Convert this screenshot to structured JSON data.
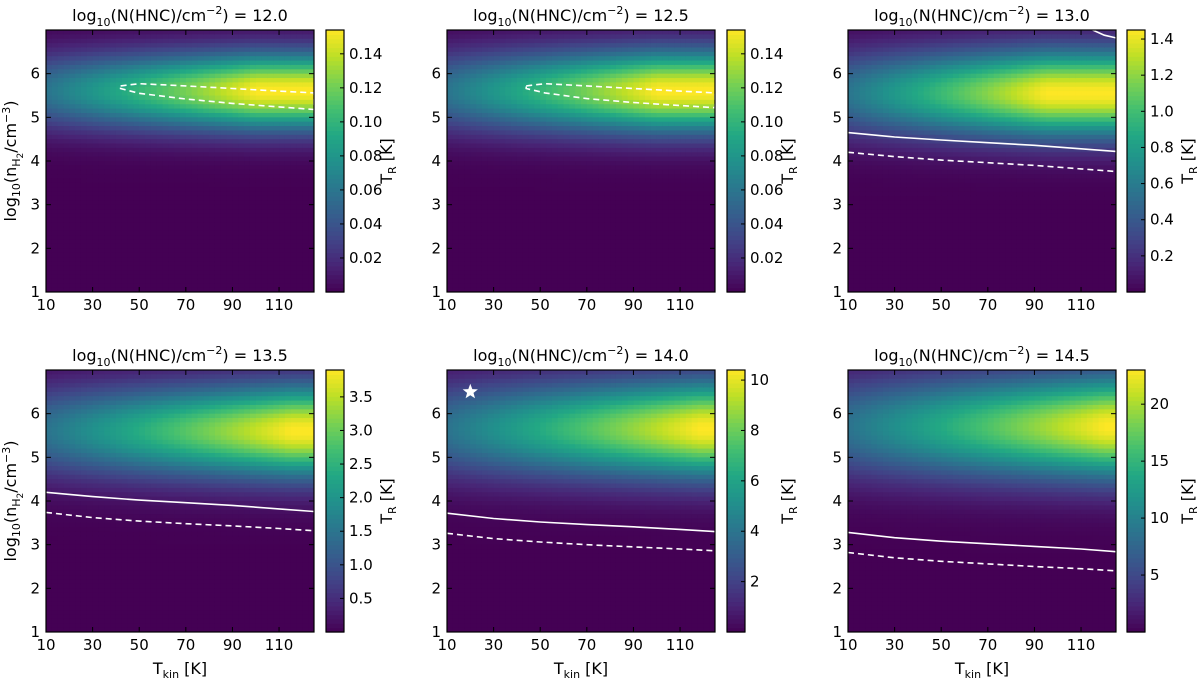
{
  "chart_data": {
    "type": "heatmap",
    "figure_title": "",
    "xlabel": "T_kin [K]",
    "ylabel": "log10(n_H2/cm^-3)",
    "colorbar_label": "T_R [K]",
    "colormap": "viridis",
    "xlim": [
      10,
      125
    ],
    "ylim": [
      1,
      7
    ],
    "xticks": [
      10,
      30,
      50,
      70,
      90,
      110
    ],
    "yticks": [
      1,
      2,
      3,
      4,
      5,
      6
    ],
    "panels": [
      {
        "title_prefix": "log",
        "title_sub": "10",
        "title_mid": "(N(HNC)/cm",
        "title_sup": "−2",
        "title_suffix": ") = 12.0",
        "logN": 12.0,
        "cbar_range": [
          0.0,
          0.154
        ],
        "cbar_ticks": [
          0.02,
          0.04,
          0.06,
          0.08,
          0.1,
          0.12,
          0.14
        ],
        "cbar_tick_labels": [
          "0.02",
          "0.04",
          "0.06",
          "0.08",
          "0.10",
          "0.12",
          "0.14"
        ],
        "peak": {
          "temp": 100,
          "density": 5.6,
          "value": 0.154
        },
        "solid_contour": [],
        "dashed_contour": [
          [
            42,
            5.72
          ],
          [
            50,
            5.77
          ],
          [
            70,
            5.72
          ],
          [
            90,
            5.66
          ],
          [
            110,
            5.6
          ],
          [
            125,
            5.56
          ],
          [
            125,
            5.18
          ],
          [
            110,
            5.24
          ],
          [
            90,
            5.32
          ],
          [
            70,
            5.42
          ],
          [
            50,
            5.55
          ],
          [
            42,
            5.66
          ],
          [
            42,
            5.72
          ]
        ],
        "star": null
      },
      {
        "title_prefix": "log",
        "title_sub": "10",
        "title_mid": "(N(HNC)/cm",
        "title_sup": "−2",
        "title_suffix": ") = 12.5",
        "logN": 12.5,
        "cbar_range": [
          0.0,
          0.154
        ],
        "cbar_ticks": [
          0.02,
          0.04,
          0.06,
          0.08,
          0.1,
          0.12,
          0.14
        ],
        "cbar_tick_labels": [
          "0.02",
          "0.04",
          "0.06",
          "0.08",
          "0.10",
          "0.12",
          "0.14"
        ],
        "peak": {
          "temp": 100,
          "density": 5.6,
          "value": 0.154
        },
        "solid_contour": [],
        "dashed_contour": [
          [
            44,
            5.72
          ],
          [
            52,
            5.77
          ],
          [
            70,
            5.72
          ],
          [
            90,
            5.66
          ],
          [
            110,
            5.6
          ],
          [
            125,
            5.56
          ],
          [
            125,
            5.22
          ],
          [
            110,
            5.27
          ],
          [
            90,
            5.34
          ],
          [
            70,
            5.43
          ],
          [
            52,
            5.56
          ],
          [
            44,
            5.66
          ],
          [
            44,
            5.72
          ]
        ],
        "star": null
      },
      {
        "title_prefix": "log",
        "title_sub": "10",
        "title_mid": "(N(HNC)/cm",
        "title_sup": "−2",
        "title_suffix": ") = 13.0",
        "logN": 13.0,
        "cbar_range": [
          0.0,
          1.45
        ],
        "cbar_ticks": [
          0.2,
          0.4,
          0.6,
          0.8,
          1.0,
          1.2,
          1.4
        ],
        "cbar_tick_labels": [
          "0.2",
          "0.4",
          "0.6",
          "0.8",
          "1.0",
          "1.2",
          "1.4"
        ],
        "peak": {
          "temp": 95,
          "density": 5.55,
          "value": 1.45
        },
        "solid_contour": [
          [
            10,
            4.65
          ],
          [
            30,
            4.55
          ],
          [
            50,
            4.48
          ],
          [
            70,
            4.42
          ],
          [
            90,
            4.36
          ],
          [
            110,
            4.28
          ],
          [
            125,
            4.22
          ]
        ],
        "dashed_contour": [
          [
            10,
            4.2
          ],
          [
            30,
            4.1
          ],
          [
            50,
            4.02
          ],
          [
            70,
            3.96
          ],
          [
            90,
            3.9
          ],
          [
            110,
            3.82
          ],
          [
            125,
            3.76
          ]
        ],
        "extra_solid_contour": [
          [
            115,
            7.0
          ],
          [
            120,
            6.88
          ],
          [
            125,
            6.82
          ]
        ],
        "star": null
      },
      {
        "title_prefix": "log",
        "title_sub": "10",
        "title_mid": "(N(HNC)/cm",
        "title_sup": "−2",
        "title_suffix": ") = 13.5",
        "logN": 13.5,
        "cbar_range": [
          0.0,
          3.9
        ],
        "cbar_ticks": [
          0.5,
          1.0,
          1.5,
          2.0,
          2.5,
          3.0,
          3.5
        ],
        "cbar_tick_labels": [
          "0.5",
          "1.0",
          "1.5",
          "2.0",
          "2.5",
          "3.0",
          "3.5"
        ],
        "peak": {
          "temp": 115,
          "density": 5.6,
          "value": 3.9
        },
        "solid_contour": [
          [
            10,
            4.2
          ],
          [
            30,
            4.1
          ],
          [
            50,
            4.02
          ],
          [
            70,
            3.96
          ],
          [
            90,
            3.9
          ],
          [
            110,
            3.82
          ],
          [
            125,
            3.76
          ]
        ],
        "dashed_contour": [
          [
            10,
            3.74
          ],
          [
            30,
            3.62
          ],
          [
            50,
            3.54
          ],
          [
            70,
            3.48
          ],
          [
            90,
            3.43
          ],
          [
            110,
            3.37
          ],
          [
            125,
            3.32
          ]
        ],
        "star": null
      },
      {
        "title_prefix": "log",
        "title_sub": "10",
        "title_mid": "(N(HNC)/cm",
        "title_sup": "−2",
        "title_suffix": ") = 14.0",
        "logN": 14.0,
        "cbar_range": [
          0.0,
          10.4
        ],
        "cbar_ticks": [
          2,
          4,
          6,
          8,
          10
        ],
        "cbar_tick_labels": [
          "2",
          "4",
          "6",
          "8",
          "10"
        ],
        "peak": {
          "temp": 118,
          "density": 5.65,
          "value": 10.4
        },
        "solid_contour": [
          [
            10,
            3.72
          ],
          [
            30,
            3.6
          ],
          [
            50,
            3.52
          ],
          [
            70,
            3.46
          ],
          [
            90,
            3.41
          ],
          [
            110,
            3.35
          ],
          [
            125,
            3.3
          ]
        ],
        "dashed_contour": [
          [
            10,
            3.26
          ],
          [
            30,
            3.14
          ],
          [
            50,
            3.06
          ],
          [
            70,
            3.0
          ],
          [
            90,
            2.95
          ],
          [
            110,
            2.9
          ],
          [
            125,
            2.86
          ]
        ],
        "star": {
          "temp": 20,
          "density": 6.5
        }
      },
      {
        "title_prefix": "log",
        "title_sub": "10",
        "title_mid": "(N(HNC)/cm",
        "title_sup": "−2",
        "title_suffix": ") = 14.5",
        "logN": 14.5,
        "cbar_range": [
          0.0,
          23.0
        ],
        "cbar_ticks": [
          5,
          10,
          15,
          20
        ],
        "cbar_tick_labels": [
          "5",
          "10",
          "15",
          "20"
        ],
        "peak": {
          "temp": 120,
          "density": 5.7,
          "value": 23.0
        },
        "solid_contour": [
          [
            10,
            3.28
          ],
          [
            30,
            3.16
          ],
          [
            50,
            3.08
          ],
          [
            70,
            3.02
          ],
          [
            90,
            2.96
          ],
          [
            110,
            2.9
          ],
          [
            125,
            2.84
          ]
        ],
        "dashed_contour": [
          [
            10,
            2.82
          ],
          [
            30,
            2.7
          ],
          [
            50,
            2.62
          ],
          [
            70,
            2.56
          ],
          [
            90,
            2.5
          ],
          [
            110,
            2.45
          ],
          [
            125,
            2.4
          ]
        ],
        "star": null
      }
    ]
  }
}
